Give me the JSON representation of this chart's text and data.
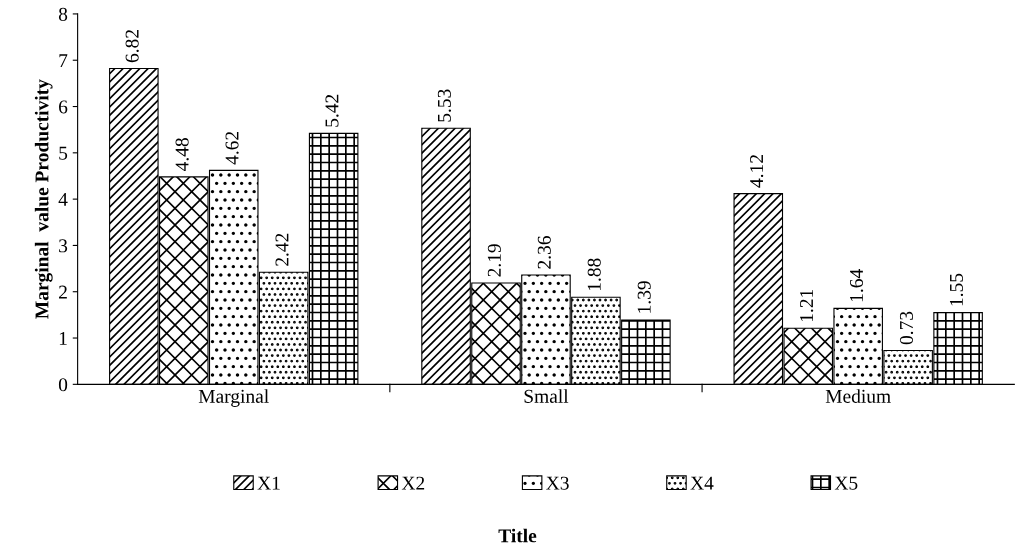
{
  "chart_data": {
    "type": "bar",
    "annotations": [
      "Title"
    ],
    "ylabel": "Marginal  value Productivity",
    "categories": [
      "Marginal",
      "Small",
      "Medium"
    ],
    "series": [
      {
        "name": "X1",
        "color": "#000000",
        "values": [
          6.82,
          5.53,
          4.12
        ]
      },
      {
        "name": "X2",
        "color": "#000000",
        "values": [
          4.48,
          2.19,
          1.21
        ]
      },
      {
        "name": "X3",
        "color": "#000000",
        "values": [
          4.62,
          2.36,
          1.64
        ]
      },
      {
        "name": "X4",
        "color": "#000000",
        "values": [
          2.42,
          1.88,
          0.73
        ]
      },
      {
        "name": "X5",
        "color": "#000000",
        "values": [
          5.42,
          1.39,
          1.55
        ]
      }
    ],
    "ylim": [
      0,
      8
    ],
    "yticks": [
      0,
      1,
      2,
      3,
      4,
      5,
      6,
      7,
      8
    ],
    "data_labels": true,
    "grid": false,
    "legend": "bottom"
  }
}
